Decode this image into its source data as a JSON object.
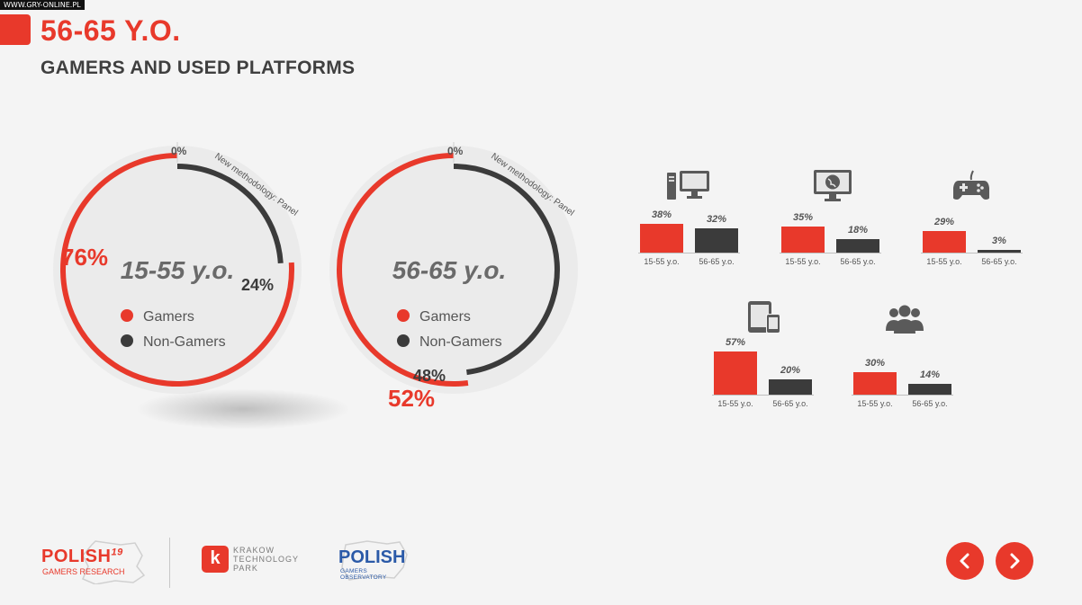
{
  "corner_tag": "WWW.GRY-ONLINE.PL",
  "header": {
    "title": "56-65 Y.O.",
    "subtitle": "GAMERS AND USED PLATFORMS"
  },
  "colors": {
    "accent": "#e8392b",
    "dark": "#3b3b3b",
    "circle_bg": "#ebebeb"
  },
  "donuts": [
    {
      "group_label": "15-55 y.o.",
      "arc_note": "New methodology: Panel",
      "zero_label": "0%",
      "gamers_label": "76%",
      "nongamers_label": "24%",
      "legend": [
        {
          "label": "Gamers",
          "color": "#e8392b"
        },
        {
          "label": "Non-Gamers",
          "color": "#3b3b3b"
        }
      ]
    },
    {
      "group_label": "56-65 y.o.",
      "arc_note": "New methodology: Panel",
      "zero_label": "0%",
      "gamers_label": "52%",
      "nongamers_label": "48%",
      "legend": [
        {
          "label": "Gamers",
          "color": "#e8392b"
        },
        {
          "label": "Non-Gamers",
          "color": "#3b3b3b"
        }
      ]
    }
  ],
  "chart_data": [
    {
      "type": "pie",
      "title": "15-55 y.o.",
      "categories": [
        "Gamers",
        "Non-Gamers"
      ],
      "values": [
        76,
        24
      ]
    },
    {
      "type": "pie",
      "title": "56-65 y.o.",
      "categories": [
        "Gamers",
        "Non-Gamers"
      ],
      "values": [
        52,
        48
      ]
    },
    {
      "type": "bar",
      "platform_icon": "desktop-pc-icon",
      "categories": [
        "15-55 y.o.",
        "56-65 y.o."
      ],
      "values": [
        38,
        32
      ],
      "labels": [
        "38%",
        "32%"
      ]
    },
    {
      "type": "bar",
      "platform_icon": "browser-globe-monitor-icon",
      "categories": [
        "15-55 y.o.",
        "56-65 y.o."
      ],
      "values": [
        35,
        18
      ],
      "labels": [
        "35%",
        "18%"
      ]
    },
    {
      "type": "bar",
      "platform_icon": "gamepad-icon",
      "categories": [
        "15-55 y.o.",
        "56-65 y.o."
      ],
      "values": [
        29,
        3
      ],
      "labels": [
        "29%",
        "3%"
      ]
    },
    {
      "type": "bar",
      "platform_icon": "tablet-phone-icon",
      "categories": [
        "15-55 y.o.",
        "56-65 y.o."
      ],
      "values": [
        57,
        20
      ],
      "labels": [
        "57%",
        "20%"
      ]
    },
    {
      "type": "bar",
      "platform_icon": "people-group-icon",
      "categories": [
        "15-55 y.o.",
        "56-65 y.o."
      ],
      "values": [
        30,
        14
      ],
      "labels": [
        "30%",
        "14%"
      ]
    }
  ],
  "footer": {
    "logo1": {
      "word": "POLISH",
      "sup": "19",
      "sub": "GAMERS RESEARCH"
    },
    "logo2": {
      "line1": "KRAKOW",
      "line2": "TECHNOLOGY",
      "line3": "PARK",
      "mark": "k"
    },
    "logo3": {
      "word": "POLISH",
      "sub": "GAMERS OBSERVATORY"
    }
  },
  "nav": {
    "prev_icon": "chevron-left-icon",
    "next_icon": "chevron-right-icon"
  }
}
